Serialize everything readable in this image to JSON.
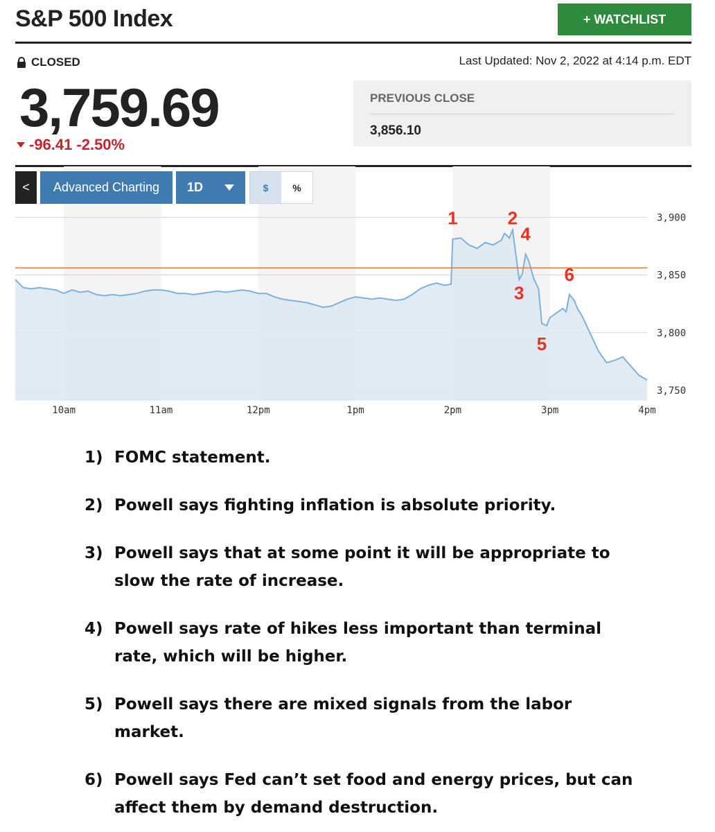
{
  "header": {
    "title": "S&P 500 Index",
    "watchlist_label": "+ WATCHLIST"
  },
  "quote": {
    "status": "CLOSED",
    "last_updated": "Last Updated: Nov 2, 2022 at 4:14 p.m. EDT",
    "price": "3,759.69",
    "change": "-96.41",
    "change_pct": "-2.50%",
    "previous_close_label": "PREVIOUS CLOSE",
    "previous_close_value": "3,856.10"
  },
  "toolbar": {
    "back_label": "<",
    "advanced_label": "Advanced Charting",
    "range_label": "1D",
    "dollar_label": "$",
    "percent_label": "%"
  },
  "colors": {
    "accent_green": "#2e8b3e",
    "down_red": "#c8232c",
    "toolbar_blue": "#3f7bb0",
    "line_blue": "#7fb0dc",
    "area_fill": "#dce7f2",
    "prev_close_line": "#e07a3a",
    "marker_red": "#e8321e"
  },
  "chart_data": {
    "type": "area",
    "x_ticks": [
      "10am",
      "11am",
      "12pm",
      "1pm",
      "2pm",
      "3pm",
      "4pm"
    ],
    "y_ticks": [
      "3,900",
      "3,850",
      "3,800",
      "3,750"
    ],
    "ylim": [
      3741,
      3908
    ],
    "xlim": [
      "9:30",
      "16:00"
    ],
    "reference_line": {
      "value": 3856.1
    },
    "series": [
      {
        "points": [
          [
            "9:30",
            3846
          ],
          [
            "9:35",
            3839
          ],
          [
            "9:40",
            3838
          ],
          [
            "9:45",
            3839
          ],
          [
            "9:50",
            3838
          ],
          [
            "9:55",
            3837
          ],
          [
            "10:00",
            3834
          ],
          [
            "10:05",
            3837
          ],
          [
            "10:10",
            3835
          ],
          [
            "10:15",
            3836
          ],
          [
            "10:20",
            3833
          ],
          [
            "10:25",
            3832
          ],
          [
            "10:30",
            3833
          ],
          [
            "10:35",
            3832
          ],
          [
            "10:40",
            3833
          ],
          [
            "10:45",
            3834
          ],
          [
            "10:50",
            3836
          ],
          [
            "10:55",
            3837
          ],
          [
            "11:00",
            3837
          ],
          [
            "11:05",
            3836
          ],
          [
            "11:10",
            3834
          ],
          [
            "11:15",
            3834
          ],
          [
            "11:20",
            3833
          ],
          [
            "11:25",
            3834
          ],
          [
            "11:30",
            3835
          ],
          [
            "11:35",
            3836
          ],
          [
            "11:40",
            3835
          ],
          [
            "11:45",
            3836
          ],
          [
            "11:50",
            3837
          ],
          [
            "11:55",
            3836
          ],
          [
            "12:00",
            3834
          ],
          [
            "12:05",
            3834
          ],
          [
            "12:10",
            3831
          ],
          [
            "12:15",
            3829
          ],
          [
            "12:20",
            3828
          ],
          [
            "12:25",
            3827
          ],
          [
            "12:30",
            3826
          ],
          [
            "12:35",
            3824
          ],
          [
            "12:40",
            3822
          ],
          [
            "12:45",
            3823
          ],
          [
            "12:50",
            3826
          ],
          [
            "12:55",
            3829
          ],
          [
            "13:00",
            3831
          ],
          [
            "13:05",
            3830
          ],
          [
            "13:10",
            3829
          ],
          [
            "13:15",
            3830
          ],
          [
            "13:20",
            3829
          ],
          [
            "13:25",
            3828
          ],
          [
            "13:30",
            3829
          ],
          [
            "13:35",
            3833
          ],
          [
            "13:40",
            3838
          ],
          [
            "13:45",
            3841
          ],
          [
            "13:50",
            3843
          ],
          [
            "13:55",
            3841
          ],
          [
            "13:59",
            3842
          ],
          [
            "14:00",
            3881
          ],
          [
            "14:05",
            3882
          ],
          [
            "14:10",
            3876
          ],
          [
            "14:15",
            3873
          ],
          [
            "14:20",
            3878
          ],
          [
            "14:25",
            3876
          ],
          [
            "14:30",
            3880
          ],
          [
            "14:32",
            3886
          ],
          [
            "14:35",
            3882
          ],
          [
            "14:37",
            3889
          ],
          [
            "14:40",
            3857
          ],
          [
            "14:41",
            3846
          ],
          [
            "14:43",
            3851
          ],
          [
            "14:45",
            3868
          ],
          [
            "14:47",
            3862
          ],
          [
            "14:50",
            3847
          ],
          [
            "14:53",
            3838
          ],
          [
            "14:55",
            3808
          ],
          [
            "14:58",
            3806
          ],
          [
            "15:00",
            3813
          ],
          [
            "15:05",
            3818
          ],
          [
            "15:08",
            3821
          ],
          [
            "15:10",
            3818
          ],
          [
            "15:12",
            3833
          ],
          [
            "15:15",
            3828
          ],
          [
            "15:17",
            3821
          ],
          [
            "15:20",
            3814
          ],
          [
            "15:25",
            3799
          ],
          [
            "15:30",
            3784
          ],
          [
            "15:35",
            3774
          ],
          [
            "15:40",
            3776
          ],
          [
            "15:45",
            3779
          ],
          [
            "15:50",
            3771
          ],
          [
            "15:55",
            3763
          ],
          [
            "16:00",
            3759
          ]
        ]
      }
    ],
    "annotations": [
      {
        "label": "1",
        "x": "14:00",
        "y": 3894
      },
      {
        "label": "2",
        "x": "14:37",
        "y": 3894
      },
      {
        "label": "3",
        "x": "14:41",
        "y": 3829
      },
      {
        "label": "4",
        "x": "14:45",
        "y": 3880
      },
      {
        "label": "5",
        "x": "14:55",
        "y": 3785
      },
      {
        "label": "6",
        "x": "15:12",
        "y": 3845
      }
    ],
    "grid": true,
    "shaded_hours": true
  },
  "notes": [
    {
      "num": "1)",
      "text": "FOMC statement."
    },
    {
      "num": "2)",
      "text": "Powell says fighting inflation is absolute priority."
    },
    {
      "num": "3)",
      "text": "Powell says that at some point it will be appropriate to slow the rate of increase."
    },
    {
      "num": "4)",
      "text": "Powell says rate of hikes less important than terminal rate, which will be higher."
    },
    {
      "num": "5)",
      "text": "Powell says there are mixed signals from the labor market."
    },
    {
      "num": "6)",
      "text": "Powell says Fed can’t set food and energy prices, but can affect them by demand destruction."
    }
  ]
}
